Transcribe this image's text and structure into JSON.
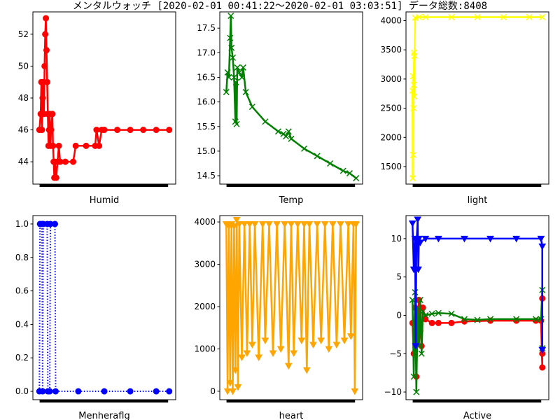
{
  "figure": {
    "title": "メンタルウォッチ  [2020-02-01 00:41:22～2020-02-01 03:03:51] データ総数:8408"
  },
  "chart_data": [
    {
      "type": "line",
      "xlabel": "Humid",
      "ylim": [
        42.6,
        53.4
      ],
      "yticks": [
        44,
        46,
        48,
        50,
        52
      ],
      "xlim": [
        -0.05,
        1.05
      ],
      "series": [
        {
          "color": "#ff0000",
          "marker": "circle",
          "linestyle": "solid",
          "points": [
            [
              0.0,
              46
            ],
            [
              0.01,
              47
            ],
            [
              0.015,
              49
            ],
            [
              0.02,
              46
            ],
            [
              0.025,
              48
            ],
            [
              0.03,
              49
            ],
            [
              0.035,
              47
            ],
            [
              0.04,
              50
            ],
            [
              0.045,
              52
            ],
            [
              0.05,
              53
            ],
            [
              0.055,
              51
            ],
            [
              0.06,
              49
            ],
            [
              0.065,
              47
            ],
            [
              0.07,
              45
            ],
            [
              0.075,
              46
            ],
            [
              0.08,
              47
            ],
            [
              0.085,
              45
            ],
            [
              0.09,
              46
            ],
            [
              0.1,
              47
            ],
            [
              0.105,
              45
            ],
            [
              0.11,
              44
            ],
            [
              0.115,
              43
            ],
            [
              0.12,
              44
            ],
            [
              0.13,
              43
            ],
            [
              0.14,
              44
            ],
            [
              0.15,
              45
            ],
            [
              0.16,
              44
            ],
            [
              0.2,
              44
            ],
            [
              0.26,
              44
            ],
            [
              0.28,
              45
            ],
            [
              0.36,
              45
            ],
            [
              0.43,
              45
            ],
            [
              0.44,
              46
            ],
            [
              0.46,
              45
            ],
            [
              0.48,
              46
            ],
            [
              0.5,
              46
            ],
            [
              0.6,
              46
            ],
            [
              0.7,
              46
            ],
            [
              0.8,
              46
            ],
            [
              0.9,
              46
            ],
            [
              1.0,
              46
            ]
          ]
        }
      ]
    },
    {
      "type": "line",
      "xlabel": "Temp",
      "ylim": [
        14.33,
        17.83
      ],
      "yticks": [
        14.5,
        15.0,
        15.5,
        16.0,
        16.5,
        17.0,
        17.5
      ],
      "xlim": [
        -0.05,
        1.05
      ],
      "series": [
        {
          "color": "#008000",
          "marker": "x",
          "linestyle": "solid",
          "points": [
            [
              0.0,
              16.2
            ],
            [
              0.01,
              16.6
            ],
            [
              0.02,
              16.5
            ],
            [
              0.03,
              17.3
            ],
            [
              0.035,
              17.75
            ],
            [
              0.04,
              17.1
            ],
            [
              0.05,
              16.9
            ],
            [
              0.06,
              16.5
            ],
            [
              0.07,
              15.6
            ],
            [
              0.075,
              16.4
            ],
            [
              0.08,
              15.55
            ],
            [
              0.085,
              16.7
            ],
            [
              0.1,
              16.6
            ],
            [
              0.12,
              16.5
            ],
            [
              0.13,
              16.7
            ],
            [
              0.15,
              16.2
            ],
            [
              0.2,
              15.9
            ],
            [
              0.3,
              15.6
            ],
            [
              0.4,
              15.4
            ],
            [
              0.44,
              15.35
            ],
            [
              0.46,
              15.3
            ],
            [
              0.48,
              15.4
            ],
            [
              0.5,
              15.25
            ],
            [
              0.6,
              15.05
            ],
            [
              0.7,
              14.9
            ],
            [
              0.8,
              14.75
            ],
            [
              0.9,
              14.6
            ],
            [
              0.95,
              14.55
            ],
            [
              1.0,
              14.45
            ]
          ]
        }
      ]
    },
    {
      "type": "line",
      "xlabel": "light",
      "ylim": [
        1200,
        4150
      ],
      "yticks": [
        1500,
        2000,
        2500,
        3000,
        3500,
        4000
      ],
      "xlim": [
        -0.05,
        1.05
      ],
      "series": [
        {
          "color": "#ffff00",
          "marker": "x",
          "linestyle": "solid",
          "points": [
            [
              0.0,
              2800
            ],
            [
              0.002,
              1300
            ],
            [
              0.004,
              3050
            ],
            [
              0.006,
              1700
            ],
            [
              0.008,
              2500
            ],
            [
              0.01,
              2900
            ],
            [
              0.012,
              3450
            ],
            [
              0.014,
              2700
            ],
            [
              0.016,
              3400
            ],
            [
              0.02,
              4050
            ],
            [
              0.05,
              4060
            ],
            [
              0.1,
              4060
            ],
            [
              0.3,
              4060
            ],
            [
              0.5,
              4060
            ],
            [
              0.7,
              4060
            ],
            [
              0.9,
              4060
            ],
            [
              1.0,
              4060
            ]
          ]
        }
      ]
    },
    {
      "type": "line",
      "xlabel": "Menheraflg",
      "ylim": [
        -0.05,
        1.05
      ],
      "yticks": [
        0.0,
        0.2,
        0.4,
        0.6,
        0.8,
        1.0
      ],
      "xlim": [
        -0.05,
        1.05
      ],
      "series": [
        {
          "color": "#0000ff",
          "marker": "circle",
          "linestyle": "dotted",
          "points": [
            [
              0.0,
              0
            ],
            [
              0.005,
              1
            ],
            [
              0.02,
              1
            ],
            [
              0.025,
              0
            ],
            [
              0.03,
              1
            ],
            [
              0.06,
              1
            ],
            [
              0.065,
              0
            ],
            [
              0.08,
              0
            ],
            [
              0.085,
              1
            ],
            [
              0.12,
              1
            ],
            [
              0.125,
              0
            ],
            [
              0.3,
              0
            ],
            [
              0.5,
              0
            ],
            [
              0.7,
              0
            ],
            [
              0.9,
              0
            ],
            [
              1.0,
              0
            ]
          ]
        }
      ]
    },
    {
      "type": "line",
      "xlabel": "heart",
      "ylim": [
        -200,
        4150
      ],
      "yticks": [
        0,
        1000,
        2000,
        3000,
        4000
      ],
      "xlim": [
        -0.05,
        1.05
      ],
      "series": [
        {
          "color": "#ffa500",
          "marker": "triangle-down",
          "linestyle": "solid",
          "points": [
            [
              0.0,
              3950
            ],
            [
              0.01,
              0
            ],
            [
              0.02,
              3900
            ],
            [
              0.03,
              200
            ],
            [
              0.04,
              3950
            ],
            [
              0.05,
              0
            ],
            [
              0.06,
              3900
            ],
            [
              0.07,
              500
            ],
            [
              0.08,
              4050
            ],
            [
              0.09,
              100
            ],
            [
              0.1,
              3950
            ],
            [
              0.12,
              800
            ],
            [
              0.14,
              3950
            ],
            [
              0.16,
              900
            ],
            [
              0.18,
              3950
            ],
            [
              0.2,
              1100
            ],
            [
              0.22,
              3950
            ],
            [
              0.25,
              800
            ],
            [
              0.28,
              3950
            ],
            [
              0.3,
              1200
            ],
            [
              0.33,
              3950
            ],
            [
              0.36,
              900
            ],
            [
              0.39,
              3950
            ],
            [
              0.42,
              1000
            ],
            [
              0.45,
              3950
            ],
            [
              0.48,
              600
            ],
            [
              0.5,
              3950
            ],
            [
              0.52,
              900
            ],
            [
              0.55,
              3950
            ],
            [
              0.58,
              1200
            ],
            [
              0.6,
              3950
            ],
            [
              0.62,
              500
            ],
            [
              0.64,
              3950
            ],
            [
              0.67,
              1100
            ],
            [
              0.7,
              3950
            ],
            [
              0.73,
              1200
            ],
            [
              0.76,
              3950
            ],
            [
              0.79,
              1000
            ],
            [
              0.82,
              3950
            ],
            [
              0.85,
              1100
            ],
            [
              0.88,
              3950
            ],
            [
              0.91,
              1200
            ],
            [
              0.94,
              3950
            ],
            [
              0.96,
              1300
            ],
            [
              0.98,
              3950
            ],
            [
              0.99,
              0
            ],
            [
              1.0,
              3950
            ]
          ]
        }
      ]
    },
    {
      "type": "line",
      "xlabel": "Active",
      "ylim": [
        -11,
        13
      ],
      "yticks": [
        -10,
        -5,
        0,
        5,
        10
      ],
      "xlim": [
        -0.05,
        1.05
      ],
      "series": [
        {
          "color": "#ff0000",
          "marker": "circle",
          "linestyle": "solid",
          "points": [
            [
              0.0,
              -1
            ],
            [
              0.01,
              -5
            ],
            [
              0.02,
              1
            ],
            [
              0.03,
              -8
            ],
            [
              0.04,
              0
            ],
            [
              0.05,
              2
            ],
            [
              0.06,
              -2
            ],
            [
              0.07,
              -4
            ],
            [
              0.08,
              1
            ],
            [
              0.1,
              -0.5
            ],
            [
              0.15,
              -1
            ],
            [
              0.2,
              -1
            ],
            [
              0.3,
              -1
            ],
            [
              0.4,
              -0.8
            ],
            [
              0.6,
              -0.7
            ],
            [
              0.8,
              -0.7
            ],
            [
              0.95,
              -0.7
            ],
            [
              0.99,
              -0.7
            ],
            [
              1.0,
              -6.8
            ],
            [
              1.0,
              2.2
            ],
            [
              1.0,
              -5
            ]
          ]
        },
        {
          "color": "#008000",
          "marker": "x",
          "linestyle": "solid",
          "points": [
            [
              0.0,
              2
            ],
            [
              0.01,
              -8
            ],
            [
              0.02,
              3
            ],
            [
              0.03,
              -10
            ],
            [
              0.04,
              1
            ],
            [
              0.05,
              -4
            ],
            [
              0.06,
              2
            ],
            [
              0.07,
              -5
            ],
            [
              0.08,
              0.5
            ],
            [
              0.1,
              0
            ],
            [
              0.15,
              0.2
            ],
            [
              0.2,
              0.3
            ],
            [
              0.3,
              0.2
            ],
            [
              0.4,
              -0.5
            ],
            [
              0.5,
              -0.6
            ],
            [
              0.6,
              -0.5
            ],
            [
              0.8,
              -0.5
            ],
            [
              0.95,
              -0.5
            ],
            [
              0.99,
              -0.5
            ],
            [
              1.0,
              3.3
            ],
            [
              1.0,
              -4.3
            ]
          ]
        },
        {
          "color": "#0000ff",
          "marker": "triangle-down",
          "linestyle": "solid",
          "points": [
            [
              0.0,
              12
            ],
            [
              0.01,
              6
            ],
            [
              0.02,
              10
            ],
            [
              0.025,
              -4
            ],
            [
              0.03,
              9
            ],
            [
              0.04,
              12.5
            ],
            [
              0.045,
              6
            ],
            [
              0.05,
              10
            ],
            [
              0.06,
              9.5
            ],
            [
              0.1,
              10
            ],
            [
              0.2,
              10
            ],
            [
              0.4,
              10
            ],
            [
              0.6,
              10
            ],
            [
              0.8,
              10
            ],
            [
              0.99,
              10
            ],
            [
              1.0,
              9
            ],
            [
              1.0,
              -4.5
            ]
          ]
        }
      ]
    }
  ]
}
